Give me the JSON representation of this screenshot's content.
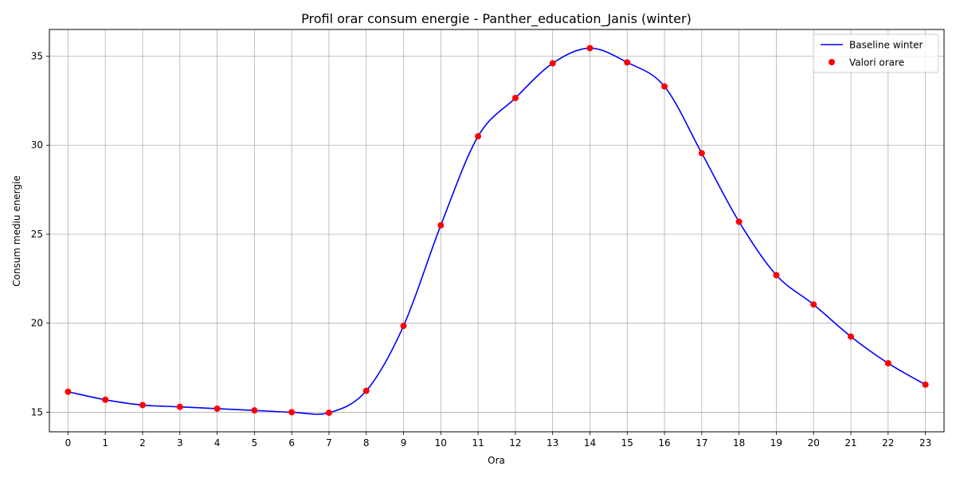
{
  "chart_data": {
    "type": "line",
    "title": "Profil orar consum energie - Panther_education_Janis (winter)",
    "xlabel": "Ora",
    "ylabel": "Consum mediu energie",
    "x": [
      0,
      1,
      2,
      3,
      4,
      5,
      6,
      7,
      8,
      9,
      10,
      11,
      12,
      13,
      14,
      15,
      16,
      17,
      18,
      19,
      20,
      21,
      22,
      23
    ],
    "xlim": [
      -0.5,
      23.5
    ],
    "ylim": [
      13.9,
      36.5
    ],
    "yticks": [
      15,
      20,
      25,
      30,
      35
    ],
    "grid": true,
    "legend_position": "top-right",
    "series": [
      {
        "name": "Baseline winter",
        "kind": "smooth-line",
        "color": "#0000ff",
        "values": [
          16.15,
          15.7,
          15.4,
          15.3,
          15.2,
          15.1,
          15.0,
          14.97,
          16.2,
          19.85,
          25.5,
          30.5,
          32.65,
          34.6,
          35.45,
          34.65,
          33.3,
          29.55,
          25.7,
          22.7,
          21.05,
          19.25,
          17.75,
          16.55
        ]
      },
      {
        "name": "Valori orare",
        "kind": "scatter",
        "color": "#ff0000",
        "values": [
          16.15,
          15.7,
          15.4,
          15.3,
          15.2,
          15.1,
          15.0,
          14.97,
          16.2,
          19.85,
          25.5,
          30.5,
          32.65,
          34.6,
          35.45,
          34.65,
          33.3,
          29.55,
          25.7,
          22.7,
          21.05,
          19.25,
          17.75,
          16.55
        ]
      }
    ]
  }
}
